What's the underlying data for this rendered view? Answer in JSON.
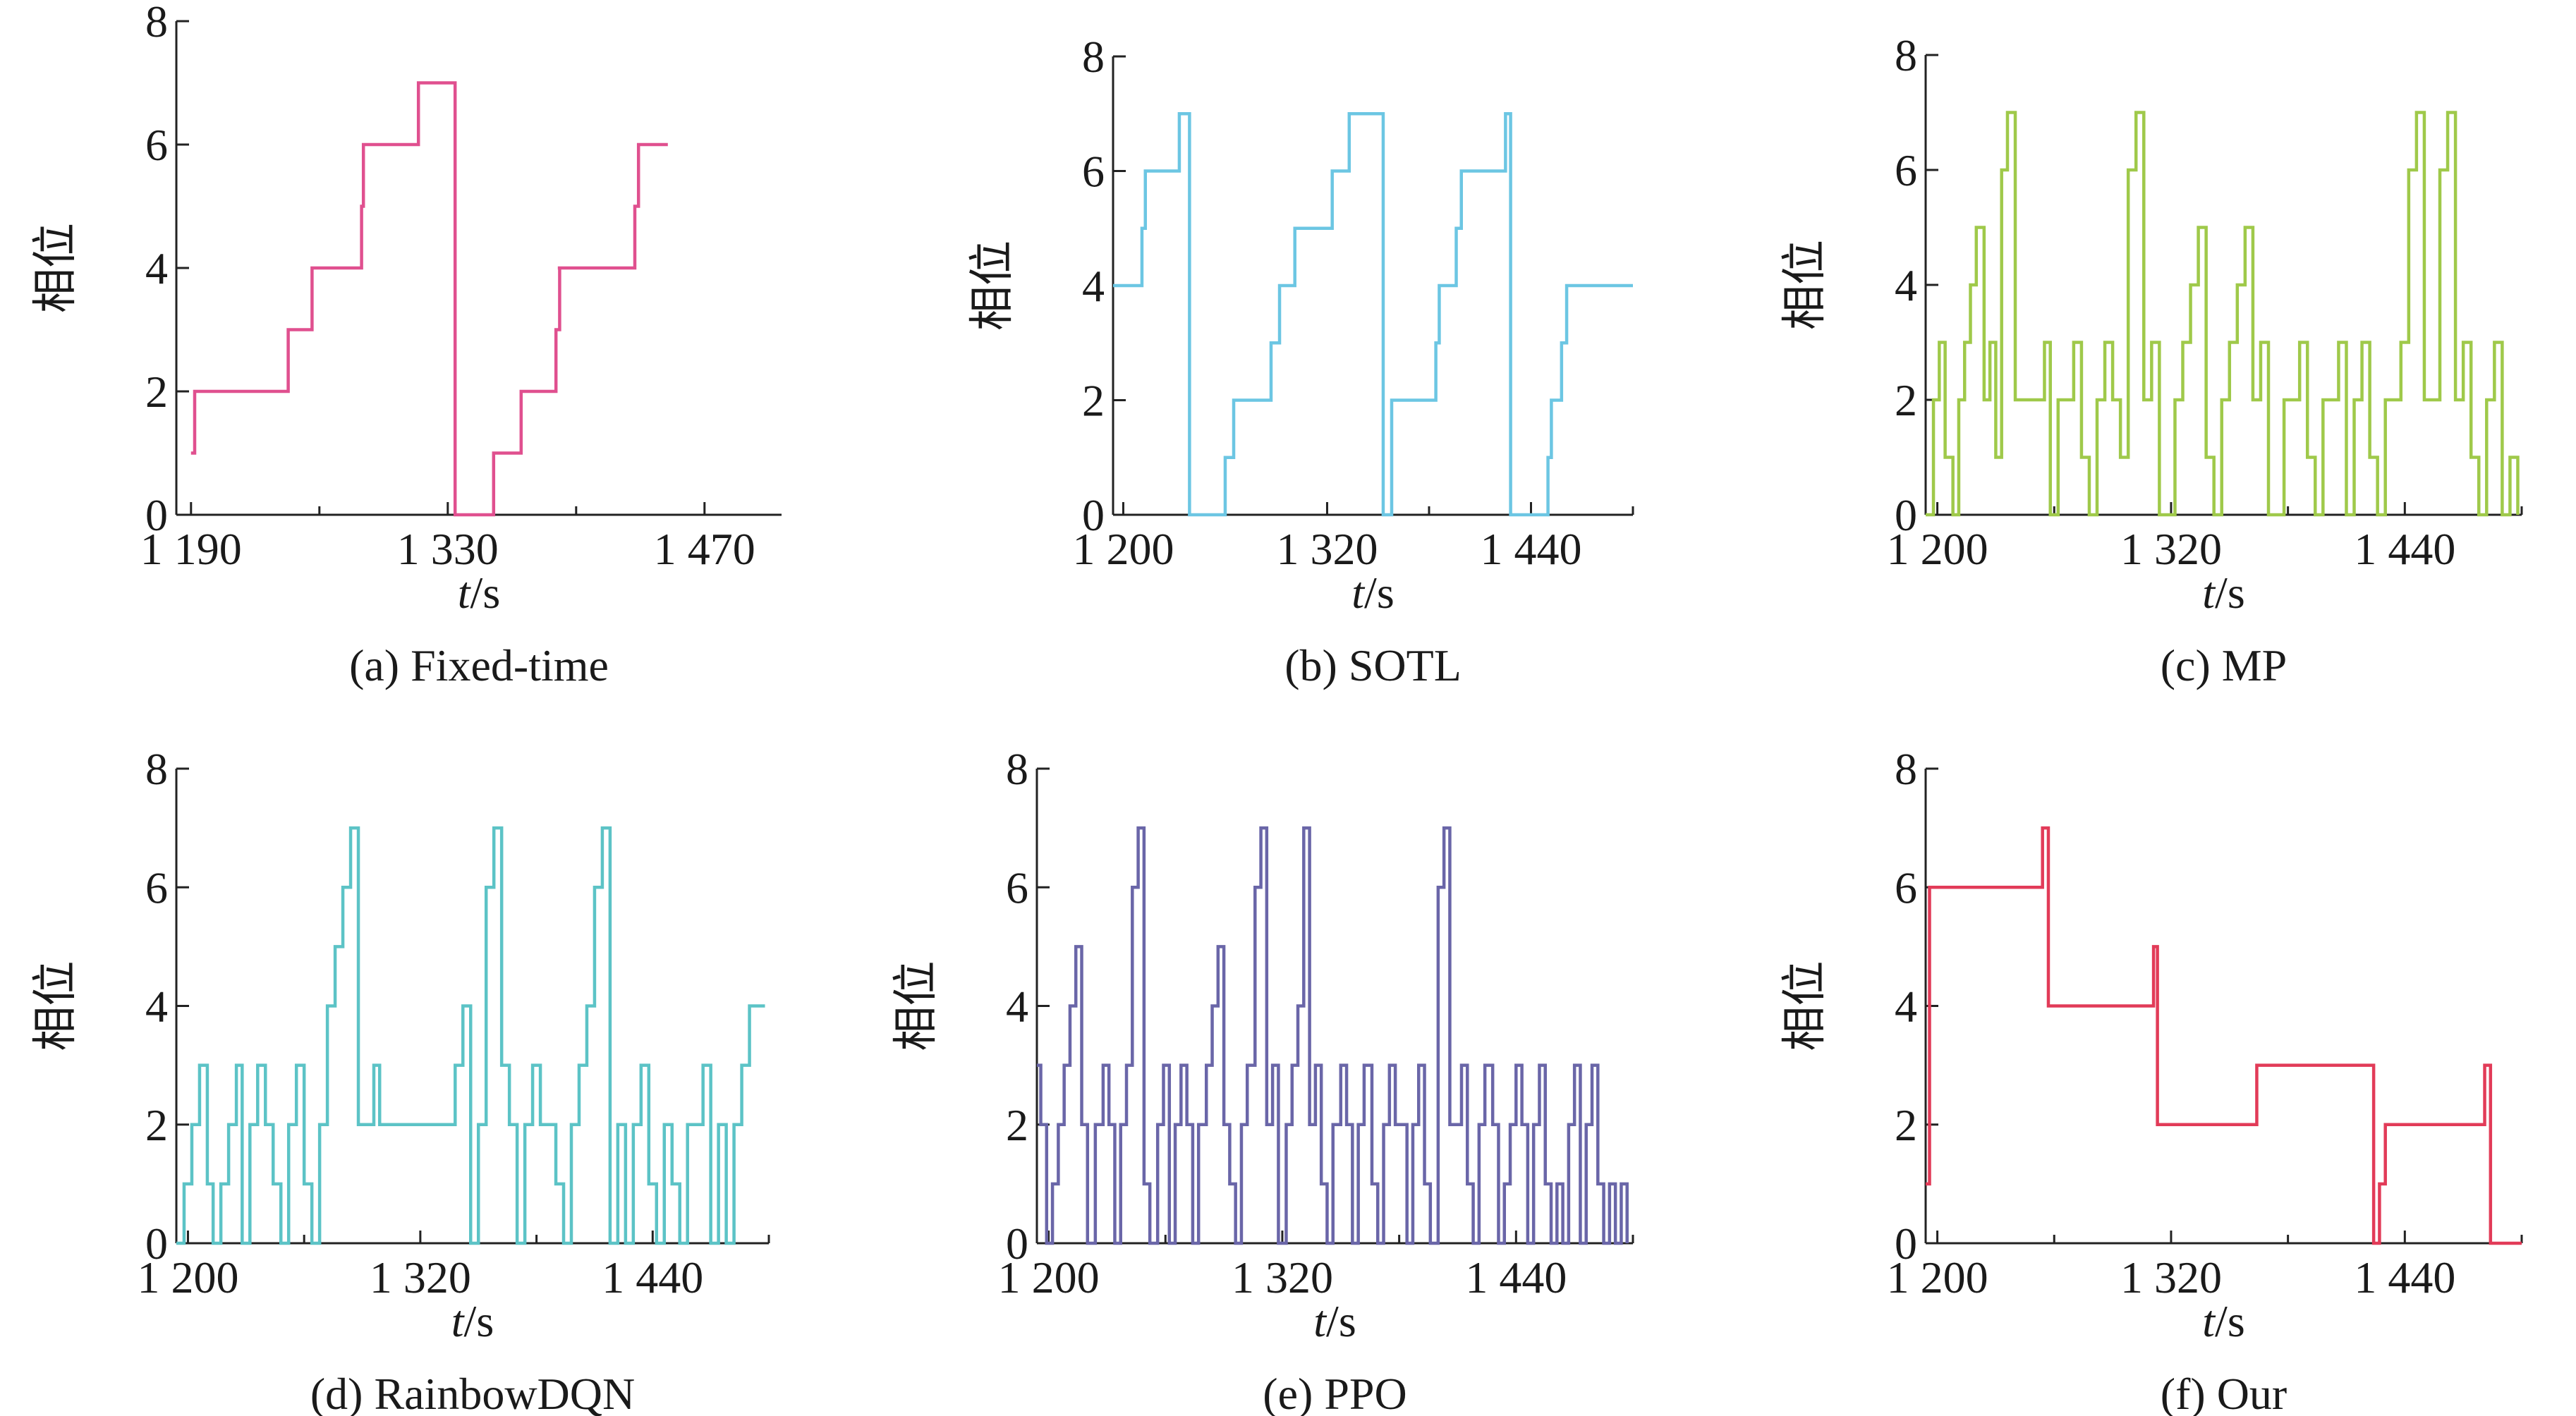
{
  "chart_data": [
    {
      "id": "a",
      "type": "line",
      "step": true,
      "caption": "(a) Fixed-time",
      "xlabel_italic": "t",
      "xlabel_unit": "/s",
      "ylabel": "相位",
      "xlim": [
        1182,
        1512
      ],
      "ylim": [
        0,
        8
      ],
      "xticks": [
        1190,
        1330,
        1470
      ],
      "xtick_labels": [
        "1 190",
        "1 330",
        "1 470"
      ],
      "xminor": [
        1260,
        1400
      ],
      "yticks": [
        0,
        2,
        4,
        6,
        8
      ],
      "color": "#e0508f",
      "series": [
        {
          "x": [
            1190,
            1192,
            1238,
            1243,
            1256,
            1258,
            1283,
            1284,
            1313,
            1314,
            1334,
            1336,
            1348,
            1355,
            1370,
            1373,
            1389,
            1391,
            1390,
            1420,
            1432,
            1434,
            1440,
            1450
          ],
          "y": [
            1,
            2,
            2,
            3,
            4,
            4,
            5,
            6,
            6,
            7,
            0,
            0,
            0,
            1,
            2,
            2,
            3,
            4,
            4,
            4,
            5,
            6,
            6,
            6
          ]
        }
      ]
    },
    {
      "id": "b",
      "type": "line",
      "step": true,
      "caption": "(b) SOTL",
      "xlabel_italic": "t",
      "xlabel_unit": "/s",
      "ylabel": "相位",
      "xlim": [
        1194,
        1500
      ],
      "ylim": [
        0,
        8
      ],
      "xticks": [
        1200,
        1320,
        1440
      ],
      "xtick_labels": [
        "1 200",
        "1 320",
        "1 440"
      ],
      "xminor": [
        1260,
        1380,
        1500
      ],
      "yticks": [
        0,
        2,
        4,
        6,
        8
      ],
      "color": "#6cc6e3",
      "series": [
        {
          "x": [
            1194,
            1211,
            1213,
            1216,
            1229,
            1233,
            1239,
            1259,
            1260,
            1262,
            1265,
            1287,
            1292,
            1297,
            1301,
            1323,
            1326,
            1333,
            1353,
            1355,
            1358,
            1363,
            1384,
            1386,
            1391,
            1396,
            1399,
            1420,
            1425,
            1428,
            1432,
            1450,
            1452,
            1458,
            1461,
            1465,
            1500
          ],
          "y": [
            4,
            5,
            6,
            6,
            6,
            7,
            0,
            0,
            1,
            1,
            2,
            3,
            4,
            4,
            5,
            6,
            6,
            7,
            0,
            0,
            2,
            2,
            3,
            4,
            4,
            5,
            6,
            6,
            7,
            0,
            0,
            1,
            2,
            3,
            4,
            4,
            4
          ]
        }
      ]
    },
    {
      "id": "c",
      "type": "line",
      "step": true,
      "caption": "(c) MP",
      "xlabel_italic": "t",
      "xlabel_unit": "/s",
      "ylabel": "相位",
      "xlim": [
        1194,
        1500
      ],
      "ylim": [
        0,
        8
      ],
      "xticks": [
        1200,
        1320,
        1440
      ],
      "xtick_labels": [
        "1 200",
        "1 320",
        "1 440"
      ],
      "xminor": [
        1260,
        1380,
        1500
      ],
      "yticks": [
        0,
        2,
        4,
        6,
        8
      ],
      "color": "#9fc94a",
      "series": [
        {
          "x": [
            1194,
            1198,
            1201,
            1204,
            1208,
            1211,
            1214,
            1217,
            1220,
            1224,
            1227,
            1230,
            1233,
            1236,
            1240,
            1244,
            1250,
            1255,
            1258,
            1262,
            1266,
            1270,
            1274,
            1278,
            1282,
            1286,
            1290,
            1294,
            1298,
            1302,
            1306,
            1310,
            1314,
            1318,
            1322,
            1326,
            1330,
            1334,
            1338,
            1342,
            1346,
            1350,
            1354,
            1358,
            1362,
            1366,
            1370,
            1374,
            1378,
            1382,
            1386,
            1390,
            1394,
            1398,
            1402,
            1406,
            1410,
            1414,
            1418,
            1422,
            1426,
            1430,
            1434,
            1438,
            1442,
            1446,
            1450,
            1454,
            1458,
            1462,
            1466,
            1470,
            1474,
            1478,
            1482,
            1486,
            1490,
            1494,
            1498
          ],
          "y": [
            0,
            2,
            3,
            1,
            0,
            2,
            3,
            4,
            5,
            2,
            3,
            1,
            6,
            7,
            2,
            2,
            2,
            3,
            0,
            2,
            2,
            3,
            1,
            0,
            2,
            3,
            2,
            1,
            6,
            7,
            2,
            3,
            0,
            0,
            2,
            3,
            4,
            5,
            1,
            0,
            2,
            3,
            4,
            5,
            2,
            3,
            0,
            0,
            2,
            2,
            3,
            1,
            0,
            2,
            2,
            3,
            0,
            2,
            3,
            1,
            0,
            2,
            2,
            3,
            6,
            7,
            2,
            2,
            6,
            7,
            2,
            3,
            1,
            0,
            2,
            3,
            0,
            1,
            0
          ]
        }
      ]
    },
    {
      "id": "d",
      "type": "line",
      "step": true,
      "caption": "(d) RainbowDQN",
      "xlabel_italic": "t",
      "xlabel_unit": "/s",
      "ylabel": "相位",
      "xlim": [
        1194,
        1500
      ],
      "ylim": [
        0,
        8
      ],
      "xticks": [
        1200,
        1320,
        1440
      ],
      "xtick_labels": [
        "1 200",
        "1 320",
        "1 440"
      ],
      "xminor": [
        1260,
        1380,
        1500
      ],
      "yticks": [
        0,
        2,
        4,
        6,
        8
      ],
      "color": "#5cc3c6",
      "series": [
        {
          "x": [
            1194,
            1198,
            1202,
            1206,
            1210,
            1213,
            1217,
            1221,
            1225,
            1228,
            1232,
            1236,
            1240,
            1244,
            1248,
            1252,
            1256,
            1260,
            1264,
            1268,
            1272,
            1276,
            1280,
            1284,
            1288,
            1292,
            1296,
            1299,
            1302,
            1306,
            1309,
            1313,
            1316,
            1338,
            1342,
            1346,
            1350,
            1354,
            1358,
            1362,
            1366,
            1370,
            1374,
            1378,
            1382,
            1386,
            1390,
            1394,
            1398,
            1402,
            1406,
            1410,
            1414,
            1418,
            1422,
            1426,
            1430,
            1434,
            1438,
            1442,
            1446,
            1450,
            1454,
            1458,
            1462,
            1466,
            1470,
            1474,
            1478,
            1482,
            1486,
            1490,
            1494,
            1498
          ],
          "y": [
            0,
            1,
            2,
            3,
            1,
            0,
            1,
            2,
            3,
            0,
            2,
            3,
            2,
            1,
            0,
            2,
            3,
            1,
            0,
            2,
            4,
            5,
            6,
            7,
            2,
            2,
            3,
            2,
            2,
            2,
            2,
            2,
            2,
            3,
            4,
            0,
            2,
            6,
            7,
            3,
            2,
            0,
            2,
            3,
            2,
            2,
            1,
            0,
            2,
            3,
            4,
            6,
            7,
            0,
            2,
            0,
            2,
            3,
            1,
            0,
            2,
            1,
            0,
            2,
            2,
            3,
            0,
            2,
            0,
            2,
            3,
            4,
            4,
            4
          ]
        }
      ]
    },
    {
      "id": "e",
      "type": "line",
      "step": true,
      "caption": "(e) PPO",
      "xlabel_italic": "t",
      "xlabel_unit": "/s",
      "ylabel": "相位",
      "xlim": [
        1194,
        1500
      ],
      "ylim": [
        0,
        8
      ],
      "xticks": [
        1200,
        1320,
        1440
      ],
      "xtick_labels": [
        "1 200",
        "1 320",
        "1 440"
      ],
      "xminor": [
        1260,
        1380,
        1500
      ],
      "yticks": [
        0,
        2,
        4,
        6,
        8
      ],
      "color": "#6a66a8",
      "series": [
        {
          "x": [
            1194,
            1196,
            1199,
            1202,
            1205,
            1208,
            1211,
            1214,
            1217,
            1220,
            1224,
            1228,
            1231,
            1234,
            1237,
            1240,
            1243,
            1246,
            1249,
            1252,
            1256,
            1259,
            1262,
            1265,
            1268,
            1271,
            1274,
            1277,
            1281,
            1284,
            1287,
            1290,
            1293,
            1296,
            1299,
            1302,
            1306,
            1309,
            1312,
            1315,
            1318,
            1322,
            1325,
            1328,
            1331,
            1334,
            1337,
            1340,
            1343,
            1346,
            1350,
            1353,
            1356,
            1359,
            1362,
            1366,
            1369,
            1372,
            1375,
            1378,
            1381,
            1384,
            1387,
            1390,
            1393,
            1396,
            1400,
            1403,
            1406,
            1409,
            1412,
            1415,
            1418,
            1421,
            1424,
            1428,
            1431,
            1434,
            1437,
            1440,
            1443,
            1446,
            1449,
            1452,
            1455,
            1458,
            1461,
            1464,
            1467,
            1470,
            1473,
            1476,
            1479,
            1482,
            1485,
            1488,
            1491,
            1494,
            1497
          ],
          "y": [
            3,
            2,
            0,
            1,
            2,
            3,
            4,
            5,
            2,
            0,
            2,
            3,
            2,
            0,
            2,
            3,
            6,
            7,
            1,
            0,
            2,
            3,
            0,
            2,
            3,
            2,
            0,
            2,
            3,
            4,
            5,
            2,
            1,
            0,
            2,
            3,
            6,
            7,
            2,
            3,
            0,
            2,
            3,
            4,
            7,
            2,
            3,
            1,
            0,
            2,
            3,
            2,
            0,
            2,
            3,
            1,
            0,
            2,
            3,
            2,
            2,
            0,
            2,
            3,
            1,
            0,
            6,
            7,
            2,
            2,
            3,
            1,
            0,
            2,
            3,
            2,
            0,
            1,
            2,
            3,
            2,
            0,
            2,
            3,
            1,
            0,
            1,
            0,
            2,
            3,
            0,
            2,
            3,
            1,
            0,
            1,
            0,
            1,
            0
          ]
        }
      ]
    },
    {
      "id": "f",
      "type": "line",
      "step": true,
      "caption": "(f) Our",
      "xlabel_italic": "t",
      "xlabel_unit": "/s",
      "ylabel": "相位",
      "xlim": [
        1194,
        1500
      ],
      "ylim": [
        0,
        8
      ],
      "xticks": [
        1200,
        1320,
        1440
      ],
      "xtick_labels": [
        "1 200",
        "1 320",
        "1 440"
      ],
      "xminor": [
        1260,
        1380,
        1500
      ],
      "yticks": [
        0,
        2,
        4,
        6,
        8
      ],
      "color": "#e23b58",
      "series": [
        {
          "x": [
            1194,
            1196,
            1197,
            1250,
            1254,
            1257,
            1308,
            1311,
            1313,
            1361,
            1364,
            1424,
            1427,
            1430,
            1478,
            1481,
            1484,
            1500
          ],
          "y": [
            1,
            6,
            6,
            6,
            7,
            4,
            4,
            5,
            2,
            2,
            3,
            0,
            1,
            2,
            2,
            3,
            0,
            0
          ]
        }
      ]
    }
  ]
}
